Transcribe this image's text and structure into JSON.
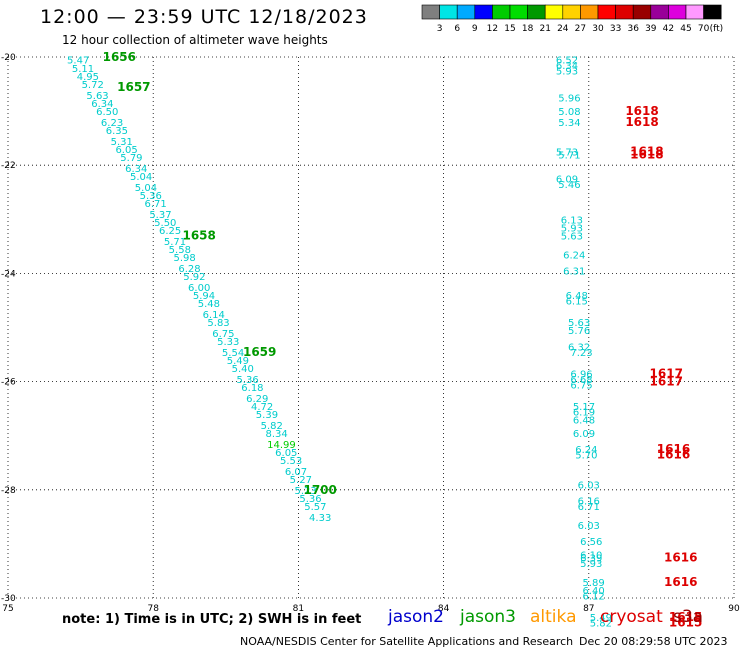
{
  "title": "12:00 — 23:59 UTC 12/18/2023",
  "subtitle": "12 hour collection of altimeter wave heights",
  "legend": {
    "ticks": [
      "3",
      "6",
      "9",
      "12",
      "15",
      "18",
      "21",
      "24",
      "27",
      "30",
      "33",
      "36",
      "39",
      "42",
      "45",
      "70"
    ],
    "unit": "(ft)",
    "colors": [
      "#7f7f7f",
      "#00e5e5",
      "#00aaff",
      "#0000ff",
      "#00cc00",
      "#00dd00",
      "#009900",
      "#ffff00",
      "#ffd200",
      "#ff9900",
      "#ff0000",
      "#dd0000",
      "#990000",
      "#990099",
      "#dd00dd",
      "#ff99ff",
      "#000000"
    ]
  },
  "footer": {
    "note": "note:  1) Time is in UTC;  2) SWH is in feet",
    "credit": "NOAA/NESDIS Center for Satellite Applications and Research",
    "timestamp": "Dec 20 08:29:58 UTC 2023",
    "missions": [
      {
        "name": "jason2",
        "color": "#0000cc"
      },
      {
        "name": "jason3",
        "color": "#009900"
      },
      {
        "name": "altika",
        "color": "#ff9900"
      },
      {
        "name": "cryosat",
        "color": "#dd0000"
      },
      {
        "name": "s3a",
        "color": "#990000"
      }
    ]
  },
  "chart_data": {
    "type": "scatter",
    "xlabel": "",
    "ylabel": "",
    "xlim": [
      75,
      90
    ],
    "ylim": [
      -30,
      -20
    ],
    "xticks": [
      "75",
      "78",
      "81",
      "84",
      "87",
      "90"
    ],
    "yticks": [
      "-20",
      "-22",
      "-24",
      "-26",
      "-28",
      "-30"
    ],
    "grid": true,
    "series": [
      {
        "mission": "jason3",
        "point_color": "#00cccc",
        "points": [
          {
            "x": 76.45,
            "y": -20.05,
            "v": "5.47"
          },
          {
            "x": 76.55,
            "y": -20.2,
            "v": "5.11"
          },
          {
            "x": 76.65,
            "y": -20.35,
            "v": "4.95"
          },
          {
            "x": 76.75,
            "y": -20.5,
            "v": "5.72"
          },
          {
            "x": 76.85,
            "y": -20.7,
            "v": "5.63"
          },
          {
            "x": 76.95,
            "y": -20.85,
            "v": "6.34"
          },
          {
            "x": 77.05,
            "y": -21.0,
            "v": "6.50"
          },
          {
            "x": 77.15,
            "y": -21.2,
            "v": "6.23"
          },
          {
            "x": 77.25,
            "y": -21.35,
            "v": "6.35"
          },
          {
            "x": 77.35,
            "y": -21.55,
            "v": "5.31"
          },
          {
            "x": 77.45,
            "y": -21.7,
            "v": "6.05"
          },
          {
            "x": 77.55,
            "y": -21.85,
            "v": "5.79"
          },
          {
            "x": 77.65,
            "y": -22.05,
            "v": "6.34"
          },
          {
            "x": 77.75,
            "y": -22.2,
            "v": "5.04"
          },
          {
            "x": 77.85,
            "y": -22.4,
            "v": "5.04"
          },
          {
            "x": 77.95,
            "y": -22.55,
            "v": "5.36"
          },
          {
            "x": 78.05,
            "y": -22.7,
            "v": "6.71"
          },
          {
            "x": 78.15,
            "y": -22.9,
            "v": "5.37"
          },
          {
            "x": 78.25,
            "y": -23.05,
            "v": "5.50"
          },
          {
            "x": 78.35,
            "y": -23.2,
            "v": "6.25"
          },
          {
            "x": 78.45,
            "y": -23.4,
            "v": "5.71"
          },
          {
            "x": 78.55,
            "y": -23.55,
            "v": "5.58"
          },
          {
            "x": 78.65,
            "y": -23.7,
            "v": "5.98"
          },
          {
            "x": 78.75,
            "y": -23.9,
            "v": "6.28"
          },
          {
            "x": 78.85,
            "y": -24.05,
            "v": "5.92"
          },
          {
            "x": 78.95,
            "y": -24.25,
            "v": "6.00"
          },
          {
            "x": 79.05,
            "y": -24.4,
            "v": "5.94"
          },
          {
            "x": 79.15,
            "y": -24.55,
            "v": "5.48"
          },
          {
            "x": 79.25,
            "y": -24.75,
            "v": "6.14"
          },
          {
            "x": 79.35,
            "y": -24.9,
            "v": "5.83"
          },
          {
            "x": 79.45,
            "y": -25.1,
            "v": "6.75"
          },
          {
            "x": 79.55,
            "y": -25.25,
            "v": "5.33"
          },
          {
            "x": 79.65,
            "y": -25.45,
            "v": "5.54"
          },
          {
            "x": 79.75,
            "y": -25.6,
            "v": "5.49"
          },
          {
            "x": 79.85,
            "y": -25.75,
            "v": "5.40"
          },
          {
            "x": 79.95,
            "y": -25.95,
            "v": "5.36"
          },
          {
            "x": 80.05,
            "y": -26.1,
            "v": "6.18"
          },
          {
            "x": 80.15,
            "y": -26.3,
            "v": "6.29"
          },
          {
            "x": 80.25,
            "y": -26.45,
            "v": "4.72"
          },
          {
            "x": 80.35,
            "y": -26.6,
            "v": "5.39"
          },
          {
            "x": 80.45,
            "y": -26.8,
            "v": "5.82"
          },
          {
            "x": 80.55,
            "y": -26.95,
            "v": "8.34"
          },
          {
            "x": 80.65,
            "y": -27.15,
            "v": "14.99",
            "color": "#00cc00"
          },
          {
            "x": 80.75,
            "y": -27.3,
            "v": "6.05"
          },
          {
            "x": 80.85,
            "y": -27.45,
            "v": "5.53"
          },
          {
            "x": 80.95,
            "y": -27.65,
            "v": "6.07"
          },
          {
            "x": 81.05,
            "y": -27.8,
            "v": "5.27"
          },
          {
            "x": 81.15,
            "y": -28.0,
            "v": "5.23"
          },
          {
            "x": 81.25,
            "y": -28.15,
            "v": "5.36"
          },
          {
            "x": 81.35,
            "y": -28.3,
            "v": "5.57"
          },
          {
            "x": 81.45,
            "y": -28.5,
            "v": "4.33"
          }
        ],
        "pass_labels": [
          {
            "x": 77.3,
            "y": -20.0,
            "v": "1656"
          },
          {
            "x": 77.6,
            "y": -20.55,
            "v": "1657"
          },
          {
            "x": 78.95,
            "y": -23.3,
            "v": "1658"
          },
          {
            "x": 80.2,
            "y": -25.45,
            "v": "1659"
          },
          {
            "x": 81.45,
            "y": -28.0,
            "v": "1700"
          }
        ]
      },
      {
        "mission": "cryosat",
        "point_color": "#00cccc",
        "points": [
          {
            "x": 86.55,
            "y": -20.05,
            "v": "6.52"
          },
          {
            "x": 86.55,
            "y": -20.15,
            "v": "6.34"
          },
          {
            "x": 86.55,
            "y": -20.25,
            "v": "5.93"
          },
          {
            "x": 86.6,
            "y": -20.75,
            "v": "5.96"
          },
          {
            "x": 86.6,
            "y": -21.0,
            "v": "5.08"
          },
          {
            "x": 86.6,
            "y": -21.2,
            "v": "5.34"
          },
          {
            "x": 86.55,
            "y": -21.75,
            "v": "5.73"
          },
          {
            "x": 86.6,
            "y": -21.8,
            "v": "5.71"
          },
          {
            "x": 86.55,
            "y": -22.25,
            "v": "6.09"
          },
          {
            "x": 86.6,
            "y": -22.35,
            "v": "5.46"
          },
          {
            "x": 86.65,
            "y": -23.0,
            "v": "6.13"
          },
          {
            "x": 86.65,
            "y": -23.15,
            "v": "5.93"
          },
          {
            "x": 86.65,
            "y": -23.3,
            "v": "5.63"
          },
          {
            "x": 86.7,
            "y": -23.65,
            "v": "6.24"
          },
          {
            "x": 86.7,
            "y": -23.95,
            "v": "6.31"
          },
          {
            "x": 86.75,
            "y": -24.4,
            "v": "6.48"
          },
          {
            "x": 86.75,
            "y": -24.5,
            "v": "6.15"
          },
          {
            "x": 86.8,
            "y": -24.9,
            "v": "5.63"
          },
          {
            "x": 86.8,
            "y": -25.05,
            "v": "5.76"
          },
          {
            "x": 86.8,
            "y": -25.35,
            "v": "6.32"
          },
          {
            "x": 86.85,
            "y": -25.45,
            "v": "7.23"
          },
          {
            "x": 86.85,
            "y": -25.85,
            "v": "6.96"
          },
          {
            "x": 86.85,
            "y": -25.95,
            "v": "6.68"
          },
          {
            "x": 86.85,
            "y": -26.05,
            "v": "6.75"
          },
          {
            "x": 86.9,
            "y": -26.45,
            "v": "5.17"
          },
          {
            "x": 86.9,
            "y": -26.55,
            "v": "6.19"
          },
          {
            "x": 86.9,
            "y": -26.7,
            "v": "6.48"
          },
          {
            "x": 86.9,
            "y": -26.95,
            "v": "6.09"
          },
          {
            "x": 86.95,
            "y": -27.25,
            "v": "6.24"
          },
          {
            "x": 86.95,
            "y": -27.35,
            "v": "5.70"
          },
          {
            "x": 87.0,
            "y": -27.9,
            "v": "6.03"
          },
          {
            "x": 87.0,
            "y": -28.2,
            "v": "6.16"
          },
          {
            "x": 87.0,
            "y": -28.3,
            "v": "6.71"
          },
          {
            "x": 87.0,
            "y": -28.65,
            "v": "6.03"
          },
          {
            "x": 87.05,
            "y": -28.95,
            "v": "6.56"
          },
          {
            "x": 87.05,
            "y": -29.2,
            "v": "6.10"
          },
          {
            "x": 87.05,
            "y": -29.25,
            "v": "6.39"
          },
          {
            "x": 87.05,
            "y": -29.35,
            "v": "5.93"
          },
          {
            "x": 87.1,
            "y": -29.7,
            "v": "5.89"
          },
          {
            "x": 87.1,
            "y": -29.85,
            "v": "6.40"
          },
          {
            "x": 87.1,
            "y": -29.95,
            "v": "6.12"
          },
          {
            "x": 87.25,
            "y": -30.35,
            "v": "5.49"
          },
          {
            "x": 87.25,
            "y": -30.45,
            "v": "5.82"
          }
        ],
        "pass_labels": [
          {
            "x": 88.1,
            "y": -21.0,
            "v": "1618"
          },
          {
            "x": 88.1,
            "y": -21.2,
            "v": "1618"
          },
          {
            "x": 88.2,
            "y": -21.75,
            "v": "1618"
          },
          {
            "x": 88.2,
            "y": -21.8,
            "v": "1618"
          },
          {
            "x": 88.6,
            "y": -25.85,
            "v": "1617"
          },
          {
            "x": 88.6,
            "y": -26.0,
            "v": "1617"
          },
          {
            "x": 88.75,
            "y": -27.25,
            "v": "1616"
          },
          {
            "x": 88.75,
            "y": -27.35,
            "v": "1616"
          },
          {
            "x": 88.9,
            "y": -29.25,
            "v": "1616"
          },
          {
            "x": 88.9,
            "y": -29.7,
            "v": "1616"
          },
          {
            "x": 89.0,
            "y": -30.35,
            "v": "1615"
          },
          {
            "x": 89.0,
            "y": -30.45,
            "v": "1615"
          }
        ]
      }
    ]
  }
}
